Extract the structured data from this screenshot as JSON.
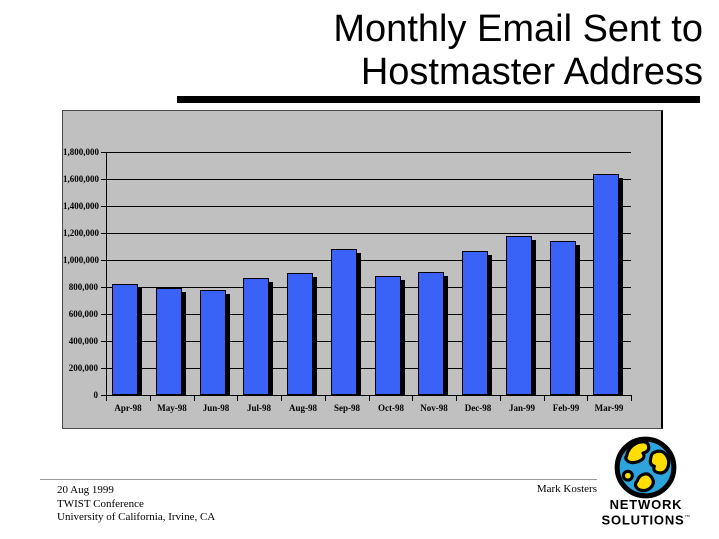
{
  "slide": {
    "title": {
      "line1": "Monthly Email Sent to",
      "line2": "Hostmaster Address"
    },
    "footer": {
      "date": "20 Aug 1999",
      "event": "TWIST Conference",
      "location": "University of California, Irvine, CA",
      "author": "Mark Kosters"
    },
    "logo": {
      "line1": "NETWORK",
      "line2": "SOLUTIONS",
      "trademark": "™",
      "globe_blue": "#2da4dc",
      "globe_yellow": "#ffdd00"
    }
  },
  "chart_data": {
    "type": "bar",
    "title": "",
    "xlabel": "",
    "ylabel": "",
    "categories": [
      "Apr-98",
      "May-98",
      "Jun-98",
      "Jul-98",
      "Aug-98",
      "Sep-98",
      "Oct-98",
      "Nov-98",
      "Dec-98",
      "Jan-99",
      "Feb-99",
      "Mar-99"
    ],
    "values": [
      820000,
      790000,
      780000,
      870000,
      900000,
      1080000,
      880000,
      910000,
      1070000,
      1180000,
      1140000,
      1640000
    ],
    "ylim": [
      0,
      1800000
    ],
    "ytick_interval": 200000,
    "ytick_labels": [
      "0",
      "200,000",
      "400,000",
      "600,000",
      "800,000",
      "1,000,000",
      "1,200,000",
      "1,400,000",
      "1,600,000",
      "1,800,000"
    ],
    "grid": true,
    "legend": false,
    "bar_color": "#3a62f6",
    "bar_border_color": "#000000",
    "bar_shadow_color": "#000000",
    "plot_bg": "#c0c0c0"
  }
}
